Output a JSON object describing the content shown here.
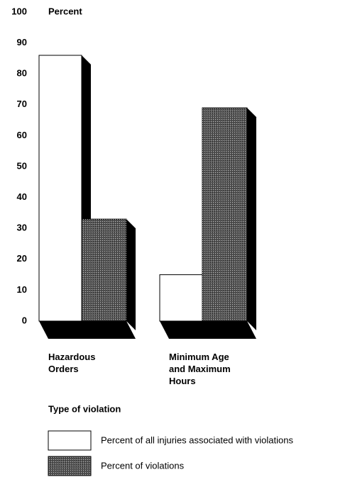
{
  "chart_data": {
    "type": "bar3d",
    "y_axis_label": "Percent",
    "x_axis_label": "Type of violation",
    "categories": [
      "Hazardous\nOrders",
      "Minimum Age\nand Maximum\nHours"
    ],
    "series": [
      {
        "name": "Percent of all injuries associated with violations",
        "color": "#ffffff",
        "values": [
          86,
          15
        ]
      },
      {
        "name": "Percent of violations",
        "color": "#555555",
        "values": [
          33,
          69
        ]
      }
    ],
    "ylim": [
      0,
      100
    ],
    "yticks": [
      0,
      10,
      20,
      30,
      40,
      50,
      60,
      70,
      80,
      90,
      100
    ],
    "grid": false
  }
}
